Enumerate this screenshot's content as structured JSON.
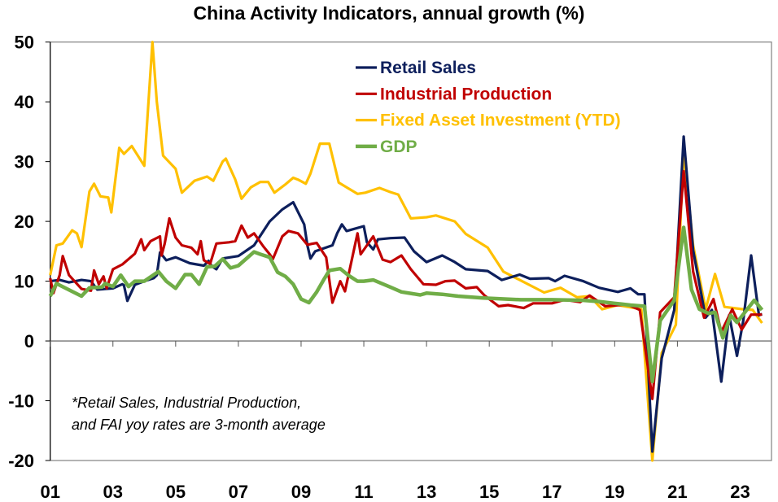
{
  "chart_data": {
    "type": "line",
    "title": "China Activity Indicators, annual growth (%)",
    "xlabel": "",
    "ylabel": "",
    "xlim": [
      2001,
      2024
    ],
    "ylim": [
      -20,
      50
    ],
    "yticks": [
      -20,
      -10,
      0,
      10,
      20,
      30,
      40,
      50
    ],
    "xticks": [
      {
        "year": 2001,
        "label": "01"
      },
      {
        "year": 2003,
        "label": "03"
      },
      {
        "year": 2005,
        "label": "05"
      },
      {
        "year": 2007,
        "label": "07"
      },
      {
        "year": 2009,
        "label": "09"
      },
      {
        "year": 2011,
        "label": "11"
      },
      {
        "year": 2013,
        "label": "13"
      },
      {
        "year": 2015,
        "label": "15"
      },
      {
        "year": 2017,
        "label": "17"
      },
      {
        "year": 2019,
        "label": "19"
      },
      {
        "year": 2021,
        "label": "21"
      },
      {
        "year": 2023,
        "label": "23"
      }
    ],
    "grid": false,
    "legend_placement": "top-center",
    "annotation": [
      "*Retail Sales, Industrial Production,",
      "and FAI yoy rates are 3-month average"
    ],
    "series": [
      {
        "name": "Retail Sales",
        "color": "#0d1f5c",
        "width": 3.2,
        "points": [
          [
            2001.0,
            10
          ],
          [
            2001.3,
            10.2
          ],
          [
            2001.6,
            9.8
          ],
          [
            2002.0,
            10.2
          ],
          [
            2002.3,
            10
          ],
          [
            2002.5,
            8.6
          ],
          [
            2003.0,
            8.8
          ],
          [
            2003.3,
            9.5
          ],
          [
            2003.35,
            9.3
          ],
          [
            2003.46,
            6.7
          ],
          [
            2003.7,
            9.4
          ],
          [
            2004.0,
            10
          ],
          [
            2004.3,
            10.5
          ],
          [
            2004.4,
            11
          ],
          [
            2004.5,
            14.8
          ],
          [
            2004.7,
            13.5
          ],
          [
            2005.0,
            14
          ],
          [
            2005.45,
            13
          ],
          [
            2005.9,
            12.6
          ],
          [
            2006.05,
            13.4
          ],
          [
            2006.15,
            12.5
          ],
          [
            2006.3,
            12
          ],
          [
            2006.5,
            13.8
          ],
          [
            2007.0,
            14.2
          ],
          [
            2007.5,
            16
          ],
          [
            2008.0,
            20
          ],
          [
            2008.4,
            22
          ],
          [
            2008.75,
            23.2
          ],
          [
            2009.1,
            19.5
          ],
          [
            2009.2,
            16
          ],
          [
            2009.3,
            13.8
          ],
          [
            2009.45,
            15
          ],
          [
            2010.0,
            16
          ],
          [
            2010.15,
            18
          ],
          [
            2010.3,
            19.5
          ],
          [
            2010.45,
            18.4
          ],
          [
            2011.0,
            19.2
          ],
          [
            2011.1,
            16.5
          ],
          [
            2011.3,
            15.3
          ],
          [
            2011.45,
            17
          ],
          [
            2011.85,
            17.2
          ],
          [
            2012.3,
            17.3
          ],
          [
            2012.6,
            15
          ],
          [
            2013.0,
            13.2
          ],
          [
            2013.5,
            14.3
          ],
          [
            2013.9,
            13.2
          ],
          [
            2014.25,
            12
          ],
          [
            2014.95,
            11.7
          ],
          [
            2015.4,
            10.2
          ],
          [
            2015.97,
            11.1
          ],
          [
            2016.3,
            10.4
          ],
          [
            2016.9,
            10.5
          ],
          [
            2017.1,
            10
          ],
          [
            2017.4,
            10.9
          ],
          [
            2018.0,
            10
          ],
          [
            2018.5,
            8.9
          ],
          [
            2019.1,
            8.2
          ],
          [
            2019.5,
            8.8
          ],
          [
            2019.75,
            7.8
          ],
          [
            2019.95,
            7.8
          ],
          [
            2020.2,
            -18.5
          ],
          [
            2020.5,
            -2.9
          ],
          [
            2020.9,
            5.2
          ],
          [
            2021.2,
            34.2
          ],
          [
            2021.5,
            15.2
          ],
          [
            2021.9,
            3.9
          ],
          [
            2022.1,
            5.2
          ],
          [
            2022.4,
            -6.8
          ],
          [
            2022.65,
            4.3
          ],
          [
            2022.9,
            -2.5
          ],
          [
            2023.1,
            3.4
          ],
          [
            2023.35,
            14.3
          ],
          [
            2023.6,
            4.3
          ],
          [
            2023.7,
            4.5
          ]
        ]
      },
      {
        "name": "Industrial Production",
        "color": "#c00000",
        "width": 3.2,
        "points": [
          [
            2001.0,
            10.5
          ],
          [
            2001.1,
            8
          ],
          [
            2001.3,
            11
          ],
          [
            2001.4,
            14.2
          ],
          [
            2001.6,
            11
          ],
          [
            2002.0,
            8.7
          ],
          [
            2002.3,
            8.4
          ],
          [
            2002.4,
            11.8
          ],
          [
            2002.55,
            9.5
          ],
          [
            2002.7,
            10.8
          ],
          [
            2002.8,
            8.8
          ],
          [
            2003.0,
            12
          ],
          [
            2003.3,
            12.8
          ],
          [
            2003.7,
            14.6
          ],
          [
            2003.9,
            17
          ],
          [
            2004.0,
            15.2
          ],
          [
            2004.2,
            16.7
          ],
          [
            2004.5,
            17.5
          ],
          [
            2004.55,
            14.3
          ],
          [
            2004.65,
            16.3
          ],
          [
            2004.8,
            20.5
          ],
          [
            2005.0,
            17.3
          ],
          [
            2005.2,
            16
          ],
          [
            2005.5,
            15.6
          ],
          [
            2005.7,
            14.5
          ],
          [
            2005.8,
            16.7
          ],
          [
            2005.9,
            13.5
          ],
          [
            2006.1,
            12.9
          ],
          [
            2006.3,
            16.3
          ],
          [
            2006.7,
            16.5
          ],
          [
            2006.9,
            16.7
          ],
          [
            2007.1,
            19.3
          ],
          [
            2007.3,
            17.3
          ],
          [
            2007.5,
            18
          ],
          [
            2007.8,
            15.8
          ],
          [
            2008.0,
            14.5
          ],
          [
            2008.1,
            13.7
          ],
          [
            2008.4,
            17.5
          ],
          [
            2008.6,
            18.4
          ],
          [
            2008.9,
            18
          ],
          [
            2009.2,
            16.1
          ],
          [
            2009.5,
            16.4
          ],
          [
            2009.8,
            14
          ],
          [
            2010.0,
            6.4
          ],
          [
            2010.25,
            10
          ],
          [
            2010.4,
            8.3
          ],
          [
            2010.8,
            18
          ],
          [
            2010.9,
            14.5
          ],
          [
            2011.3,
            17.5
          ],
          [
            2011.6,
            13.6
          ],
          [
            2011.85,
            13.2
          ],
          [
            2012.2,
            14.3
          ],
          [
            2012.5,
            12
          ],
          [
            2012.9,
            9.5
          ],
          [
            2013.3,
            9.4
          ],
          [
            2013.6,
            10
          ],
          [
            2013.9,
            10.1
          ],
          [
            2014.25,
            8.8
          ],
          [
            2014.6,
            9
          ],
          [
            2014.85,
            7.6
          ],
          [
            2015.3,
            5.8
          ],
          [
            2015.6,
            6
          ],
          [
            2016.1,
            5.5
          ],
          [
            2016.4,
            6.3
          ],
          [
            2017.0,
            6.3
          ],
          [
            2017.4,
            6.9
          ],
          [
            2017.9,
            6.5
          ],
          [
            2018.2,
            7.6
          ],
          [
            2018.7,
            5.8
          ],
          [
            2019.4,
            6.1
          ],
          [
            2019.8,
            5.2
          ],
          [
            2020.2,
            -9.7
          ],
          [
            2020.45,
            4.8
          ],
          [
            2020.9,
            7.3
          ],
          [
            2021.2,
            28.4
          ],
          [
            2021.5,
            11.6
          ],
          [
            2021.85,
            3.9
          ],
          [
            2022.15,
            7
          ],
          [
            2022.4,
            1.5
          ],
          [
            2022.75,
            5.3
          ],
          [
            2023.05,
            1.9
          ],
          [
            2023.35,
            4.4
          ],
          [
            2023.7,
            4.4
          ]
        ]
      },
      {
        "name": "Fixed Asset Investment (YTD)",
        "color": "#ffc000",
        "width": 3.2,
        "points": [
          [
            2001.0,
            11
          ],
          [
            2001.2,
            16
          ],
          [
            2001.4,
            16.3
          ],
          [
            2001.7,
            18.5
          ],
          [
            2001.85,
            18
          ],
          [
            2002.0,
            15.7
          ],
          [
            2002.25,
            25
          ],
          [
            2002.4,
            26.3
          ],
          [
            2002.6,
            24.2
          ],
          [
            2002.85,
            24
          ],
          [
            2002.95,
            21.5
          ],
          [
            2003.2,
            32.3
          ],
          [
            2003.35,
            31.3
          ],
          [
            2003.6,
            32.6
          ],
          [
            2004.0,
            29.3
          ],
          [
            2004.26,
            50
          ],
          [
            2004.4,
            40
          ],
          [
            2004.6,
            31
          ],
          [
            2005.0,
            28.8
          ],
          [
            2005.2,
            24.8
          ],
          [
            2005.6,
            26.8
          ],
          [
            2006.0,
            27.5
          ],
          [
            2006.2,
            26.8
          ],
          [
            2006.5,
            30
          ],
          [
            2006.6,
            30.5
          ],
          [
            2006.9,
            27
          ],
          [
            2007.1,
            23.8
          ],
          [
            2007.4,
            25.7
          ],
          [
            2007.7,
            26.6
          ],
          [
            2007.95,
            26.6
          ],
          [
            2008.15,
            24.8
          ],
          [
            2008.5,
            26.2
          ],
          [
            2008.75,
            27.3
          ],
          [
            2008.9,
            27
          ],
          [
            2009.15,
            26.3
          ],
          [
            2009.3,
            28
          ],
          [
            2009.6,
            33
          ],
          [
            2009.9,
            33
          ],
          [
            2010.2,
            26.5
          ],
          [
            2010.45,
            25.7
          ],
          [
            2010.8,
            24.6
          ],
          [
            2011.05,
            24.8
          ],
          [
            2011.5,
            25.6
          ],
          [
            2011.85,
            24.9
          ],
          [
            2012.1,
            24.5
          ],
          [
            2012.5,
            20.5
          ],
          [
            2013.0,
            20.7
          ],
          [
            2013.3,
            21
          ],
          [
            2013.9,
            20
          ],
          [
            2014.25,
            17.9
          ],
          [
            2014.95,
            15.6
          ],
          [
            2015.45,
            11.6
          ],
          [
            2015.97,
            10.2
          ],
          [
            2016.75,
            8.1
          ],
          [
            2017.27,
            8.9
          ],
          [
            2017.8,
            7.3
          ],
          [
            2018.2,
            7.5
          ],
          [
            2018.6,
            5.3
          ],
          [
            2019.1,
            6
          ],
          [
            2019.85,
            5.3
          ],
          [
            2020.2,
            -20
          ],
          [
            2020.5,
            -2
          ],
          [
            2020.95,
            2.7
          ],
          [
            2021.2,
            32
          ],
          [
            2021.5,
            16
          ],
          [
            2021.9,
            5.3
          ],
          [
            2022.2,
            11.2
          ],
          [
            2022.5,
            5.7
          ],
          [
            2023.1,
            5.3
          ],
          [
            2023.4,
            5.2
          ],
          [
            2023.7,
            3
          ]
        ]
      },
      {
        "name": "GDP",
        "color": "#70ad47",
        "width": 4.5,
        "points": [
          [
            2001.0,
            7.5
          ],
          [
            2001.2,
            9.6
          ],
          [
            2001.5,
            8.8
          ],
          [
            2002.0,
            7.5
          ],
          [
            2002.25,
            8.9
          ],
          [
            2002.65,
            9
          ],
          [
            2002.75,
            9.6
          ],
          [
            2003.0,
            9.1
          ],
          [
            2003.25,
            11
          ],
          [
            2003.5,
            9.1
          ],
          [
            2003.7,
            10
          ],
          [
            2004.0,
            10
          ],
          [
            2004.45,
            11.6
          ],
          [
            2004.7,
            10
          ],
          [
            2005.0,
            8.8
          ],
          [
            2005.3,
            11.1
          ],
          [
            2005.5,
            11.1
          ],
          [
            2005.75,
            9.5
          ],
          [
            2006.0,
            12.4
          ],
          [
            2006.25,
            12.5
          ],
          [
            2006.5,
            13.7
          ],
          [
            2006.75,
            12.2
          ],
          [
            2007.0,
            12.6
          ],
          [
            2007.5,
            14.9
          ],
          [
            2007.7,
            14.5
          ],
          [
            2008.0,
            14
          ],
          [
            2008.25,
            11.5
          ],
          [
            2008.5,
            10.8
          ],
          [
            2008.75,
            9.5
          ],
          [
            2009.0,
            7
          ],
          [
            2009.25,
            6.4
          ],
          [
            2009.5,
            8.2
          ],
          [
            2009.75,
            10.5
          ],
          [
            2009.9,
            11.8
          ],
          [
            2010.25,
            12.1
          ],
          [
            2010.5,
            11
          ],
          [
            2010.8,
            10
          ],
          [
            2011.0,
            10
          ],
          [
            2011.3,
            10.2
          ],
          [
            2011.85,
            9
          ],
          [
            2012.2,
            8.2
          ],
          [
            2012.8,
            7.7
          ],
          [
            2013.0,
            8
          ],
          [
            2013.5,
            7.8
          ],
          [
            2014.0,
            7.5
          ],
          [
            2014.8,
            7.2
          ],
          [
            2016.0,
            6.9
          ],
          [
            2017.0,
            6.9
          ],
          [
            2018.0,
            6.8
          ],
          [
            2018.5,
            6.6
          ],
          [
            2019.0,
            6.3
          ],
          [
            2019.5,
            6
          ],
          [
            2019.95,
            5.8
          ],
          [
            2020.2,
            -6.8
          ],
          [
            2020.45,
            3.4
          ],
          [
            2020.9,
            6.8
          ],
          [
            2021.2,
            19
          ],
          [
            2021.45,
            8.6
          ],
          [
            2021.7,
            5.3
          ],
          [
            2022.0,
            4.6
          ],
          [
            2022.2,
            4.8
          ],
          [
            2022.45,
            0.5
          ],
          [
            2022.7,
            4.3
          ],
          [
            2022.9,
            3.1
          ],
          [
            2023.45,
            6.8
          ],
          [
            2023.7,
            5.2
          ]
        ]
      }
    ]
  }
}
